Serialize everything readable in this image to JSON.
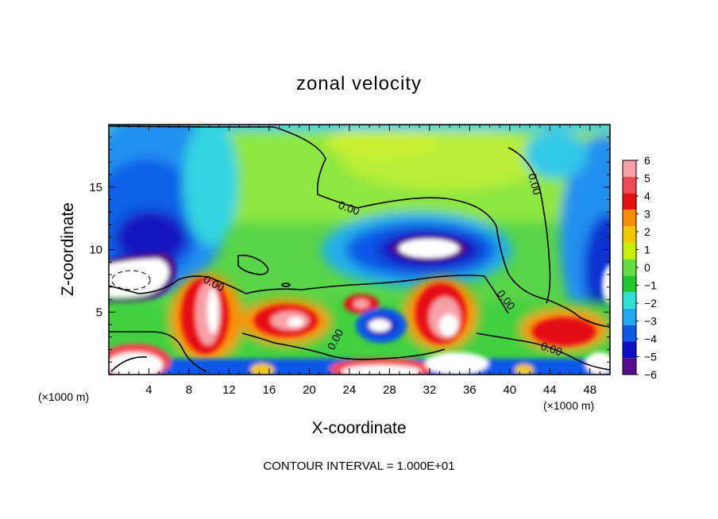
{
  "chart_data": {
    "type": "heatmap",
    "title": "zonal velocity",
    "xlabel": "X-coordinate",
    "ylabel": "Z-coordinate",
    "x_unit_left": "(×1000 m)",
    "x_unit_right": "(×1000 m)",
    "xlim": [
      0,
      50
    ],
    "ylim": [
      0,
      20
    ],
    "x_ticks": [
      4,
      8,
      12,
      16,
      20,
      24,
      28,
      32,
      36,
      40,
      44,
      48
    ],
    "y_ticks": [
      5,
      10,
      15
    ],
    "colorbar": {
      "ticks": [
        6,
        5,
        4,
        3,
        2,
        1,
        0,
        -1,
        -2,
        -3,
        -4,
        -5,
        -6
      ],
      "colors": [
        "#f7a0a8",
        "#f24a52",
        "#e60f12",
        "#ff8c00",
        "#f0c800",
        "#c8f000",
        "#60e040",
        "#20c830",
        "#30e0d0",
        "#20a8f0",
        "#1058e8",
        "#1010c8",
        "#5a0a8c"
      ]
    },
    "contour_labels": [
      "0.00",
      "0.00",
      "0.00",
      "0.00",
      "0.00",
      "0.00"
    ],
    "footnote": "CONTOUR INTERVAL = 1.000E+01",
    "regions": [
      {
        "name": "upper-domain",
        "x": [
          0,
          50
        ],
        "z": [
          13,
          20
        ],
        "value": 0.5
      },
      {
        "name": "left-upper-jet",
        "x": [
          0,
          10
        ],
        "z": [
          6,
          19
        ],
        "value": -4.5
      },
      {
        "name": "right-edge-negative",
        "x": [
          45,
          50
        ],
        "z": [
          5,
          19
        ],
        "value": -3.5
      },
      {
        "name": "central-negative-band",
        "x": [
          21,
          38
        ],
        "z": [
          9,
          14
        ],
        "value": -4
      },
      {
        "name": "central-max-negative",
        "x": [
          28,
          35
        ],
        "z": [
          9.5,
          11
        ],
        "value": -6
      },
      {
        "name": "left-mid-negative",
        "x": [
          0,
          7
        ],
        "z": [
          6.5,
          9.5
        ],
        "value": -6
      },
      {
        "name": "lower-jet-left",
        "x": [
          7,
          11
        ],
        "z": [
          2,
          8
        ],
        "value": 6
      },
      {
        "name": "lower-jet-mid",
        "x": [
          14,
          21
        ],
        "z": [
          3.5,
          6
        ],
        "value": 5.5
      },
      {
        "name": "lower-jet-right",
        "x": [
          31,
          37
        ],
        "z": [
          2,
          7
        ],
        "value": 6
      },
      {
        "name": "lower-jet-edge",
        "x": [
          42,
          50
        ],
        "z": [
          2,
          5
        ],
        "value": 4
      },
      {
        "name": "negative-pocket",
        "x": [
          24,
          29
        ],
        "z": [
          2.5,
          5
        ],
        "value": -5
      },
      {
        "name": "surface-negative",
        "x": [
          0,
          50
        ],
        "z": [
          0,
          1.5
        ],
        "value": -5
      }
    ]
  }
}
